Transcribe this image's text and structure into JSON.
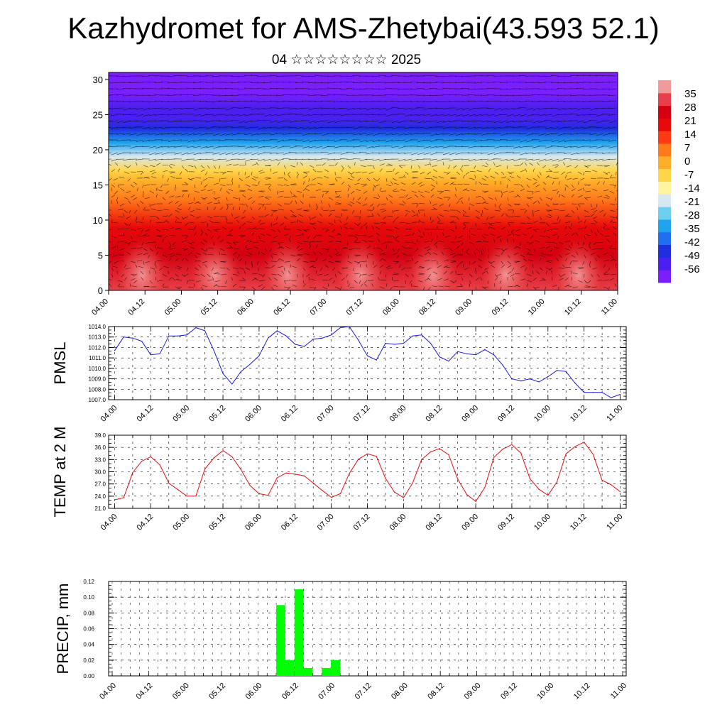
{
  "header": {
    "title": "Kazhydromet for AMS-Zhetybai(43.593 52.1)",
    "subtitle": "04 ☆☆☆☆☆☆☆☆ 2025"
  },
  "colors": {
    "pmsl_line": "#1a1adf",
    "temp_line": "#e01010",
    "precip_bar": "#00ff00",
    "vector": "#000000"
  },
  "chart_data": [
    {
      "type": "heatmap",
      "title": "",
      "xlabel": "",
      "ylabel": "",
      "x_ticks": [
        "04.00",
        "04.12",
        "05.00",
        "05.12",
        "06.00",
        "06.12",
        "07.00",
        "07.12",
        "08.00",
        "08.12",
        "09.00",
        "09.12",
        "10.00",
        "10.12",
        "11.00"
      ],
      "y_ticks": [
        0,
        5,
        10,
        15,
        20,
        25,
        30
      ],
      "ylim": [
        0,
        31
      ],
      "overlay": "wind vectors",
      "colorbar": {
        "labels": [
          35,
          28,
          21,
          14,
          7,
          0,
          -7,
          -14,
          -21,
          -28,
          -35,
          -42,
          -49,
          -56
        ],
        "range": [
          -63,
          42
        ],
        "colors": [
          "#7b1fff",
          "#4b1fef",
          "#1f2fdf",
          "#1f6fef",
          "#1fa3ef",
          "#6fcfef",
          "#d8e8f0",
          "#fff4a0",
          "#ffd54a",
          "#ffae2a",
          "#ff7a1a",
          "#ff3a14",
          "#e80a0a",
          "#d40010",
          "#e8404a",
          "#f09a9a"
        ]
      },
      "field": {
        "levels": [
          0,
          5,
          9,
          13,
          15.5,
          17,
          19,
          21,
          23,
          24.5,
          26,
          28,
          31
        ],
        "values": [
          30,
          24,
          16,
          6,
          0,
          -9,
          -20,
          -32,
          -44,
          -50,
          -55,
          -58,
          -60
        ]
      }
    },
    {
      "type": "line",
      "title": "",
      "xlabel": "",
      "ylabel": "PMSL",
      "x_ticks": [
        "04.00",
        "04.12",
        "05.00",
        "05.12",
        "06.00",
        "06.12",
        "07.00",
        "07.12",
        "08.00",
        "08.12",
        "09.00",
        "09.12",
        "10.00",
        "10.12",
        "11.00"
      ],
      "y_ticks": [
        "1007.0",
        "1008.0",
        "1009.0",
        "1010.0",
        "1011.0",
        "1012.0",
        "1013.0",
        "1014.0"
      ],
      "ylim": [
        1007.0,
        1014.0
      ],
      "xlim": [
        -2,
        170
      ],
      "x": [
        0,
        3,
        6,
        9,
        12,
        15,
        18,
        21,
        24,
        27,
        30,
        33,
        36,
        39,
        42,
        45,
        48,
        51,
        54,
        57,
        60,
        63,
        66,
        69,
        72,
        75,
        78,
        81,
        84,
        87,
        90,
        93,
        96,
        99,
        102,
        105,
        108,
        111,
        114,
        117,
        120,
        123,
        126,
        129,
        132,
        135,
        138,
        141,
        144,
        147,
        150,
        153,
        156,
        159,
        162,
        165,
        168
      ],
      "series": [
        {
          "name": "",
          "values": [
            1011.7,
            1013.0,
            1012.9,
            1012.6,
            1011.3,
            1011.4,
            1013.1,
            1013.1,
            1013.2,
            1013.9,
            1013.6,
            1011.7,
            1009.5,
            1008.5,
            1009.7,
            1010.4,
            1011.2,
            1012.9,
            1013.6,
            1013.1,
            1012.3,
            1012.1,
            1012.8,
            1012.9,
            1013.2,
            1013.9,
            1014.0,
            1012.7,
            1011.2,
            1010.8,
            1012.4,
            1012.3,
            1012.4,
            1013.1,
            1013.2,
            1012.4,
            1011.1,
            1010.7,
            1011.6,
            1011.4,
            1011.3,
            1011.8,
            1011.3,
            1010.3,
            1009.0,
            1008.8,
            1009.0,
            1008.7,
            1009.2,
            1009.8,
            1009.7,
            1008.6,
            1007.7,
            1007.7,
            1007.7,
            1007.2,
            1007.5
          ]
        }
      ]
    },
    {
      "type": "line",
      "title": "",
      "xlabel": "",
      "ylabel": "TEMP at 2 M",
      "x_ticks": [
        "04.00",
        "04.12",
        "05.00",
        "05.12",
        "06.00",
        "06.12",
        "07.00",
        "07.12",
        "08.00",
        "08.12",
        "09.00",
        "09.12",
        "10.00",
        "10.12",
        "11.00"
      ],
      "y_ticks": [
        "21.0",
        "24.0",
        "27.0",
        "30.0",
        "33.0",
        "36.0",
        "39.0"
      ],
      "ylim": [
        21.0,
        39.0
      ],
      "xlim": [
        -2,
        170
      ],
      "x": [
        0,
        3,
        6,
        9,
        12,
        15,
        18,
        21,
        24,
        27,
        30,
        33,
        36,
        39,
        42,
        45,
        48,
        51,
        54,
        57,
        60,
        63,
        66,
        69,
        72,
        75,
        78,
        81,
        84,
        87,
        90,
        93,
        96,
        99,
        102,
        105,
        108,
        111,
        114,
        117,
        120,
        123,
        126,
        129,
        132,
        135,
        138,
        141,
        144,
        147,
        150,
        153,
        156,
        159,
        162,
        165,
        168
      ],
      "series": [
        {
          "name": "",
          "values": [
            23.1,
            23.6,
            29.8,
            32.6,
            33.7,
            31.7,
            27.2,
            25.6,
            24.0,
            24.0,
            30.7,
            33.4,
            35.2,
            33.7,
            30.5,
            26.6,
            24.6,
            24.2,
            28.5,
            29.7,
            29.4,
            29.0,
            27.2,
            25.4,
            23.7,
            24.6,
            29.6,
            33.1,
            34.4,
            33.8,
            28.4,
            25.0,
            23.6,
            27.2,
            33.0,
            34.9,
            35.7,
            34.2,
            28.2,
            24.4,
            22.7,
            26.1,
            33.5,
            35.6,
            36.7,
            34.6,
            28.3,
            25.7,
            24.2,
            27.5,
            34.4,
            36.2,
            37.3,
            34.3,
            27.9,
            26.8,
            25.1
          ]
        }
      ]
    },
    {
      "type": "bar",
      "title": "",
      "xlabel": "",
      "ylabel": "PRECIP, mm",
      "x_ticks": [
        "04.00",
        "04.12",
        "05.00",
        "05.12",
        "06.00",
        "06.12",
        "07.00",
        "07.12",
        "08.00",
        "08.12",
        "09.00",
        "09.12",
        "10.00",
        "10.12",
        "11.00"
      ],
      "y_ticks": [
        "0.00",
        "0.02",
        "0.04",
        "0.06",
        "0.08",
        "0.10",
        "0.12"
      ],
      "ylim": [
        0.0,
        0.12
      ],
      "xlim": [
        0,
        168
      ],
      "bar_width": 3,
      "x": [
        54,
        57,
        60,
        63,
        69,
        72
      ],
      "values": [
        0.09,
        0.02,
        0.11,
        0.01,
        0.01,
        0.02
      ]
    }
  ]
}
